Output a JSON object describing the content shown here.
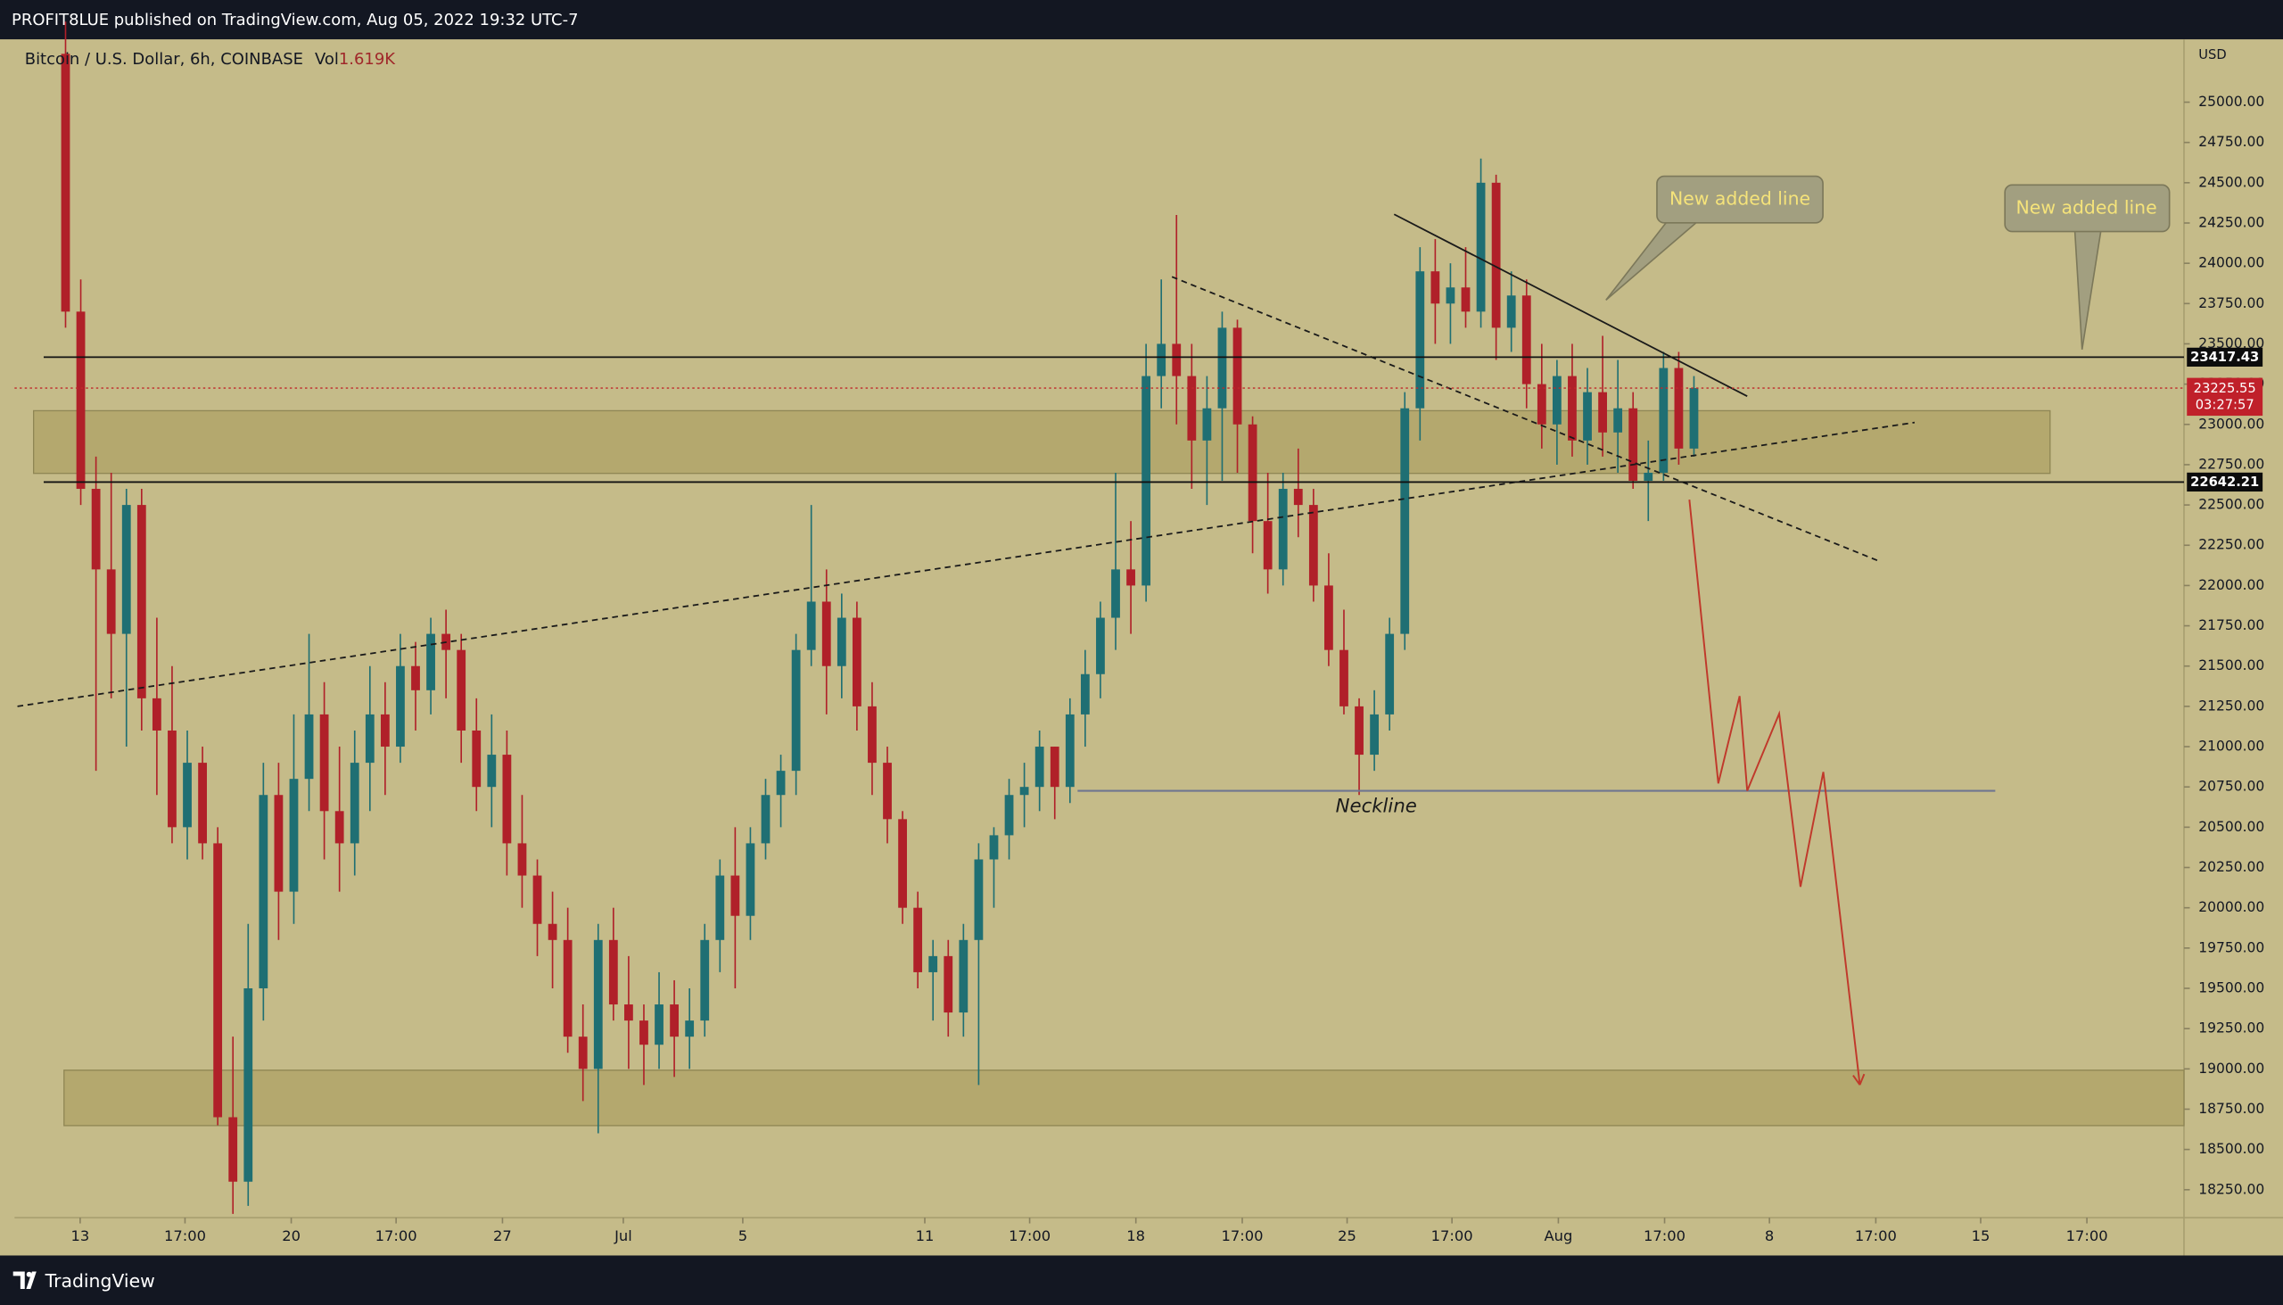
{
  "header": {
    "text": "PROFIT8LUE published on TradingView.com, Aug 05, 2022 19:32 UTC-7"
  },
  "footer": {
    "brand": "TradingView"
  },
  "chart_data": {
    "type": "candlestick",
    "title": "Bitcoin / U.S. Dollar, 6h, COINBASE",
    "volume_name": "Vol",
    "volume": "1.619K",
    "currency": "USD",
    "up_color": "#1f6f73",
    "down_color": "#b02029",
    "ylim": [
      17860,
      25390
    ],
    "yticks": [
      {
        "value": 18250,
        "label": "18250.00"
      },
      {
        "value": 18500,
        "label": "18500.00"
      },
      {
        "value": 18750,
        "label": "18750.00"
      },
      {
        "value": 19000,
        "label": "19000.00"
      },
      {
        "value": 19250,
        "label": "19250.00"
      },
      {
        "value": 19500,
        "label": "19500.00"
      },
      {
        "value": 19750,
        "label": "19750.00"
      },
      {
        "value": 20000,
        "label": "20000.00"
      },
      {
        "value": 20250,
        "label": "20250.00"
      },
      {
        "value": 20500,
        "label": "20500.00"
      },
      {
        "value": 20750,
        "label": "20750.00"
      },
      {
        "value": 21000,
        "label": "21000.00"
      },
      {
        "value": 21250,
        "label": "21250.00"
      },
      {
        "value": 21500,
        "label": "21500.00"
      },
      {
        "value": 21750,
        "label": "21750.00"
      },
      {
        "value": 22000,
        "label": "22000.00"
      },
      {
        "value": 22250,
        "label": "22250.00"
      },
      {
        "value": 22500,
        "label": "22500.00"
      },
      {
        "value": 22750,
        "label": "22750.00"
      },
      {
        "value": 23000,
        "label": "23000.00"
      },
      {
        "value": 23250,
        "label": "23250.00"
      },
      {
        "value": 23500,
        "label": "23500.00"
      },
      {
        "value": 23750,
        "label": "23750.00"
      },
      {
        "value": 24000,
        "label": "24000.00"
      },
      {
        "value": 24250,
        "label": "24250.00"
      },
      {
        "value": 24500,
        "label": "24500.00"
      },
      {
        "value": 24750,
        "label": "24750.00"
      },
      {
        "value": 25000,
        "label": "25000.00"
      }
    ],
    "xlim": [
      -3.35,
      139.2
    ],
    "xticks": [
      {
        "value": 0.96,
        "label": "13"
      },
      {
        "value": 7.85,
        "label": "17:00"
      },
      {
        "value": 14.83,
        "label": "20"
      },
      {
        "value": 21.72,
        "label": "17:00"
      },
      {
        "value": 28.71,
        "label": "27"
      },
      {
        "value": 36.65,
        "label": "Jul"
      },
      {
        "value": 44.5,
        "label": "5"
      },
      {
        "value": 56.46,
        "label": "11"
      },
      {
        "value": 63.35,
        "label": "17:00"
      },
      {
        "value": 70.33,
        "label": "18"
      },
      {
        "value": 77.32,
        "label": "17:00"
      },
      {
        "value": 84.21,
        "label": "25"
      },
      {
        "value": 91.1,
        "label": "17:00"
      },
      {
        "value": 98.09,
        "label": "Aug"
      },
      {
        "value": 105.07,
        "label": "17:00"
      },
      {
        "value": 111.96,
        "label": "8"
      },
      {
        "value": 118.95,
        "label": "17:00"
      },
      {
        "value": 125.84,
        "label": "15"
      },
      {
        "value": 132.82,
        "label": "17:00"
      }
    ],
    "candles": [
      [
        25300,
        25500,
        23600,
        23700
      ],
      [
        23700,
        23900,
        22500,
        22600
      ],
      [
        22600,
        22800,
        20850,
        22100
      ],
      [
        22100,
        22700,
        21300,
        21700
      ],
      [
        21700,
        22600,
        21000,
        22500
      ],
      [
        22500,
        22600,
        21100,
        21300
      ],
      [
        21300,
        21800,
        20700,
        21100
      ],
      [
        21100,
        21500,
        20400,
        20500
      ],
      [
        20500,
        21100,
        20300,
        20900
      ],
      [
        20900,
        21000,
        20300,
        20400
      ],
      [
        20400,
        20500,
        18650,
        18700
      ],
      [
        18700,
        19200,
        18100,
        18300
      ],
      [
        18300,
        19900,
        18150,
        19500
      ],
      [
        19500,
        20900,
        19300,
        20700
      ],
      [
        20700,
        20900,
        19800,
        20100
      ],
      [
        20100,
        21200,
        19900,
        20800
      ],
      [
        20800,
        21700,
        20600,
        21200
      ],
      [
        21200,
        21400,
        20300,
        20600
      ],
      [
        20600,
        21000,
        20100,
        20400
      ],
      [
        20400,
        21100,
        20200,
        20900
      ],
      [
        20900,
        21500,
        20600,
        21200
      ],
      [
        21200,
        21400,
        20700,
        21000
      ],
      [
        21000,
        21700,
        20900,
        21500
      ],
      [
        21500,
        21650,
        21100,
        21350
      ],
      [
        21350,
        21800,
        21200,
        21700
      ],
      [
        21700,
        21850,
        21300,
        21600
      ],
      [
        21600,
        21700,
        20900,
        21100
      ],
      [
        21100,
        21300,
        20600,
        20750
      ],
      [
        20750,
        21200,
        20500,
        20950
      ],
      [
        20950,
        21100,
        20200,
        20400
      ],
      [
        20400,
        20700,
        20000,
        20200
      ],
      [
        20200,
        20300,
        19700,
        19900
      ],
      [
        19900,
        20100,
        19500,
        19800
      ],
      [
        19800,
        20000,
        19100,
        19200
      ],
      [
        19200,
        19400,
        18800,
        19000
      ],
      [
        19000,
        19900,
        18600,
        19800
      ],
      [
        19800,
        20000,
        19300,
        19400
      ],
      [
        19400,
        19700,
        19000,
        19300
      ],
      [
        19300,
        19400,
        18900,
        19150
      ],
      [
        19150,
        19600,
        19000,
        19400
      ],
      [
        19400,
        19550,
        18950,
        19200
      ],
      [
        19200,
        19500,
        19000,
        19300
      ],
      [
        19300,
        19900,
        19200,
        19800
      ],
      [
        19800,
        20300,
        19600,
        20200
      ],
      [
        20200,
        20500,
        19500,
        19950
      ],
      [
        19950,
        20500,
        19800,
        20400
      ],
      [
        20400,
        20800,
        20300,
        20700
      ],
      [
        20700,
        20950,
        20500,
        20850
      ],
      [
        20850,
        21700,
        20700,
        21600
      ],
      [
        21600,
        22500,
        21500,
        21900
      ],
      [
        21900,
        22100,
        21200,
        21500
      ],
      [
        21500,
        21950,
        21300,
        21800
      ],
      [
        21800,
        21900,
        21100,
        21250
      ],
      [
        21250,
        21400,
        20700,
        20900
      ],
      [
        20900,
        21000,
        20400,
        20550
      ],
      [
        20550,
        20600,
        19900,
        20000
      ],
      [
        20000,
        20100,
        19500,
        19600
      ],
      [
        19600,
        19800,
        19300,
        19700
      ],
      [
        19700,
        19800,
        19200,
        19350
      ],
      [
        19350,
        19900,
        19200,
        19800
      ],
      [
        19800,
        20400,
        18900,
        20300
      ],
      [
        20300,
        20500,
        20000,
        20450
      ],
      [
        20450,
        20800,
        20300,
        20700
      ],
      [
        20700,
        20900,
        20500,
        20750
      ],
      [
        20750,
        21100,
        20600,
        21000
      ],
      [
        21000,
        21000,
        20550,
        20750
      ],
      [
        20750,
        21300,
        20650,
        21200
      ],
      [
        21200,
        21600,
        21000,
        21450
      ],
      [
        21450,
        21900,
        21300,
        21800
      ],
      [
        21800,
        22700,
        21600,
        22100
      ],
      [
        22100,
        22400,
        21700,
        22000
      ],
      [
        22000,
        23500,
        21900,
        23300
      ],
      [
        23300,
        23900,
        23100,
        23500
      ],
      [
        23500,
        24300,
        23000,
        23300
      ],
      [
        23300,
        23500,
        22600,
        22900
      ],
      [
        22900,
        23300,
        22500,
        23100
      ],
      [
        23100,
        23700,
        22650,
        23600
      ],
      [
        23600,
        23650,
        22700,
        23000
      ],
      [
        23000,
        23050,
        22200,
        22400
      ],
      [
        22400,
        22700,
        21950,
        22100
      ],
      [
        22100,
        22700,
        22000,
        22600
      ],
      [
        22600,
        22850,
        22300,
        22500
      ],
      [
        22500,
        22600,
        21900,
        22000
      ],
      [
        22000,
        22200,
        21500,
        21600
      ],
      [
        21600,
        21850,
        21200,
        21250
      ],
      [
        21250,
        21300,
        20700,
        20950
      ],
      [
        20950,
        21350,
        20850,
        21200
      ],
      [
        21200,
        21800,
        21100,
        21700
      ],
      [
        21700,
        23200,
        21600,
        23100
      ],
      [
        23100,
        24100,
        22900,
        23950
      ],
      [
        23950,
        24150,
        23500,
        23750
      ],
      [
        23750,
        24000,
        23500,
        23850
      ],
      [
        23850,
        24100,
        23600,
        23700
      ],
      [
        23700,
        24650,
        23600,
        24500
      ],
      [
        24500,
        24550,
        23400,
        23600
      ],
      [
        23600,
        23950,
        23450,
        23800
      ],
      [
        23800,
        23900,
        23100,
        23250
      ],
      [
        23250,
        23500,
        22850,
        23000
      ],
      [
        23000,
        23400,
        22750,
        23300
      ],
      [
        23300,
        23500,
        22800,
        22900
      ],
      [
        22900,
        23350,
        22750,
        23200
      ],
      [
        23200,
        23550,
        22800,
        22950
      ],
      [
        22950,
        23400,
        22700,
        23100
      ],
      [
        23100,
        23200,
        22600,
        22650
      ],
      [
        22650,
        22900,
        22400,
        22700
      ],
      [
        22700,
        23450,
        22650,
        23350
      ],
      [
        23350,
        23450,
        22750,
        22850
      ],
      [
        22850,
        23300,
        22800,
        23225.55
      ]
    ],
    "last_price": {
      "value": 23225.55,
      "label": "23225.55"
    },
    "countdown": "03:27:57",
    "levels": [
      {
        "value": 23417.43,
        "label": "23417.43"
      },
      {
        "value": 22642.21,
        "label": "22642.21"
      }
    ],
    "zones": [
      {
        "x": [
          -2.1,
          130.4
        ],
        "y": [
          22696,
          23085
        ]
      },
      {
        "x": [
          -0.1,
          139.2
        ],
        "y": [
          18648,
          18992
        ]
      }
    ],
    "trendlines": [
      {
        "x": [
          -3.16,
          121.5
        ],
        "y": [
          21250,
          23012
        ],
        "style": "dashed"
      },
      {
        "x": [
          72.7,
          119.1
        ],
        "y": [
          23916,
          22154
        ],
        "style": "dashed"
      },
      {
        "x": [
          87.3,
          110.5
        ],
        "y": [
          24304,
          23175
        ],
        "style": "solid"
      }
    ],
    "neckline": {
      "label": "Neckline",
      "x": [
        66.5,
        126.8
      ],
      "value": 20726
    },
    "projection": {
      "x": [
        106.7,
        108.6,
        110,
        110.5,
        112.6,
        114,
        115.5,
        117.9
      ],
      "y": [
        22533,
        20772,
        21314,
        20726,
        21205,
        20130,
        20843,
        18901
      ],
      "color": "#c0392b"
    },
    "callouts": [
      {
        "text": "New added line"
      },
      {
        "text": "New added line"
      }
    ]
  }
}
